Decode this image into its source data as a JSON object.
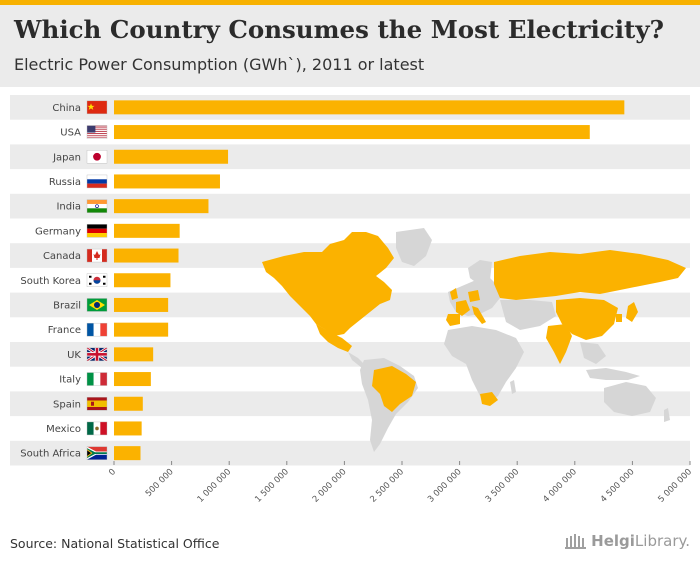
{
  "header": {
    "title": "Which Country Consumes the Most Electricity?",
    "subtitle": "Electric Power Consumption (GWh`), 2011 or latest"
  },
  "footer": {
    "source": "Source: National Statistical Office",
    "brand_prefix": "Helgi",
    "brand_suffix": "Library."
  },
  "colors": {
    "accent": "#f7b100",
    "bar": "#fbb200",
    "row_band": "#ebebeb",
    "map_land": "#d6d6d6"
  },
  "chart_data": {
    "type": "bar",
    "orientation": "horizontal",
    "title": "Which Country Consumes the Most Electricity?",
    "subtitle": "Electric Power Consumption (GWh`), 2011 or latest",
    "categories": [
      "China",
      "USA",
      "Japan",
      "Russia",
      "India",
      "Germany",
      "Canada",
      "South Korea",
      "Brazil",
      "France",
      "UK",
      "Italy",
      "Spain",
      "Mexico",
      "South Africa"
    ],
    "values": [
      4430000,
      4130000,
      990000,
      920000,
      820000,
      570000,
      560000,
      490000,
      470000,
      470000,
      340000,
      320000,
      250000,
      240000,
      230000
    ],
    "xlim": [
      0,
      5000000
    ],
    "xticks": [
      0,
      500000,
      1000000,
      1500000,
      2000000,
      2500000,
      3000000,
      3500000,
      4000000,
      4500000,
      5000000
    ],
    "xtick_labels": [
      "0",
      "500 000",
      "1 000 000",
      "1 500 000",
      "2 000 000",
      "2 500 000",
      "3 000 000",
      "3 500 000",
      "4 000 000",
      "4 500 000",
      "5 000 000"
    ],
    "flags": [
      "china-flag-icon",
      "usa-flag-icon",
      "japan-flag-icon",
      "russia-flag-icon",
      "india-flag-icon",
      "germany-flag-icon",
      "canada-flag-icon",
      "south-korea-flag-icon",
      "brazil-flag-icon",
      "france-flag-icon",
      "uk-flag-icon",
      "italy-flag-icon",
      "spain-flag-icon",
      "mexico-flag-icon",
      "south-africa-flag-icon"
    ],
    "background": "world-map highlighting listed countries",
    "grid": false
  }
}
